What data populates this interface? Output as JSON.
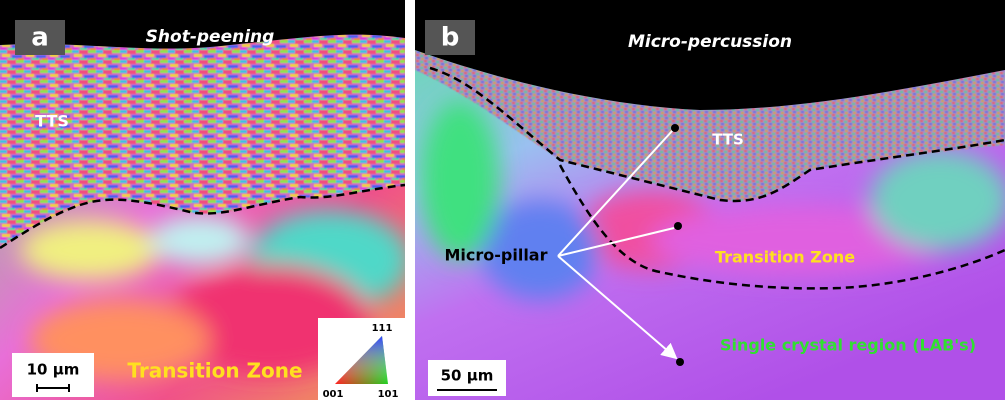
{
  "panels": [
    {
      "label": "a",
      "title": "Shot-peening",
      "annotations": [
        "TTS",
        "Transition Zone"
      ],
      "scale_bar": "10 μm",
      "ipf_key": [
        "111",
        "001",
        "101"
      ]
    },
    {
      "label": "b",
      "title": "Micro-percussion",
      "annotations": [
        "TTS",
        "Micro-pillar",
        "Transition Zone",
        "Single crystal region (LAB's)"
      ],
      "scale_bar": "50 μm"
    }
  ]
}
